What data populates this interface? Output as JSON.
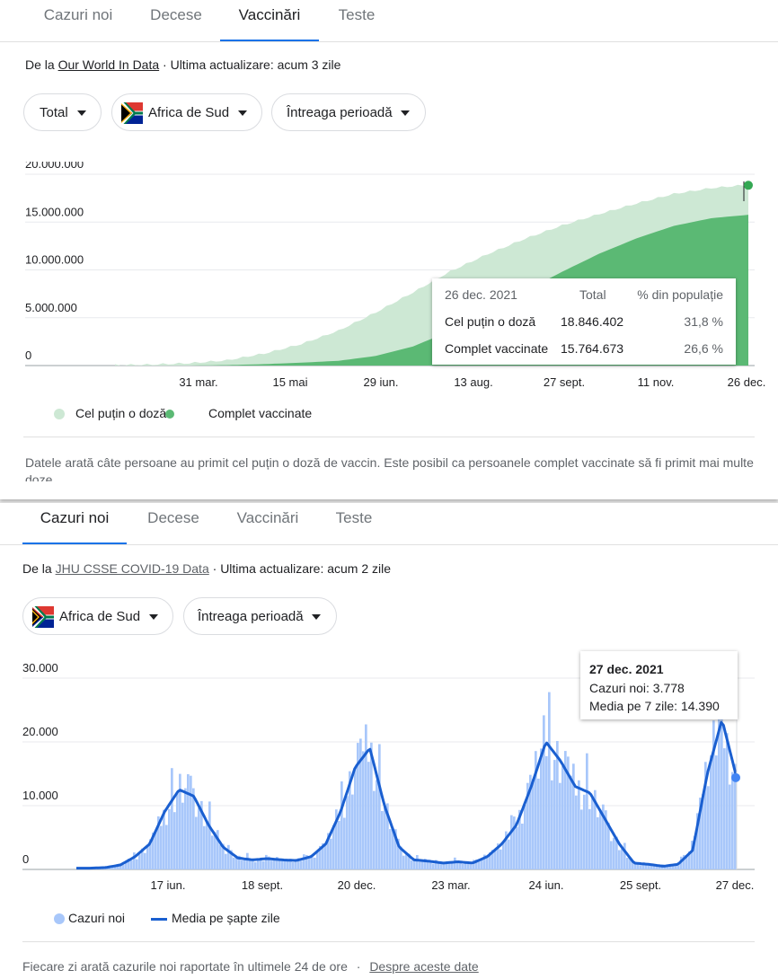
{
  "vacc": {
    "tabs": [
      "Cazuri noi",
      "Decese",
      "Vaccinări",
      "Teste"
    ],
    "active_tab": 2,
    "source_prefix": "De la",
    "source_link": "Our World In Data",
    "updated": "· Ultima actualizare: acum 3 zile",
    "filters": {
      "type": "Total",
      "country": "Africa de Sud",
      "period": "Întreaga perioadă"
    },
    "tooltip": {
      "date": "26 dec. 2021",
      "col_total": "Total",
      "col_pct": "% din populație",
      "rows": [
        {
          "label": "Cel puțin o doză",
          "total": "18.846.402",
          "pct": "31,8 %"
        },
        {
          "label": "Complet vaccinate",
          "total": "15.764.673",
          "pct": "26,6 %"
        }
      ]
    },
    "legend": [
      "Cel puțin o doză",
      "Complet vaccinate"
    ],
    "note": "Datele arată câte persoane au primit cel puțin o doză de vaccin. Este posibil ca persoanele complet vaccinate să fi primit mai multe doze"
  },
  "cases": {
    "tabs": [
      "Cazuri noi",
      "Decese",
      "Vaccinări",
      "Teste"
    ],
    "active_tab": 0,
    "source_prefix": "De la",
    "source_link": "JHU CSSE COVID-19 Data",
    "updated": "· Ultima actualizare: acum 2 zile",
    "filters": {
      "country": "Africa de Sud",
      "period": "Întreaga perioadă"
    },
    "tooltip": {
      "date": "27 dec. 2021",
      "line1": "Cazuri noi: 3.778",
      "line2": "Media pe 7 zile: 14.390"
    },
    "legend": [
      "Cazuri noi",
      "Media pe șapte zile"
    ],
    "footer_text": "Fiecare zi arată cazurile noi raportate în ultimele 24 de ore",
    "footer_sep": "·",
    "footer_link": "Despre aceste date"
  },
  "colors": {
    "accent": "#1a73e8",
    "green_light": "#cde8d4",
    "green_dark": "#5bb974",
    "blue_bar": "#a8c7fa",
    "blue_line": "#1a5fd0"
  },
  "icons": {
    "flag": "south-africa-flag-icon",
    "dropdown": "caret-down-icon"
  },
  "chart_data": [
    {
      "type": "area",
      "x_ticks": [
        "31 mar.",
        "15 mai",
        "29 iun.",
        "13 aug.",
        "27 sept.",
        "11 nov.",
        "26 dec."
      ],
      "y_ticks": [
        "0",
        "5.000.000",
        "10.000.000",
        "15.000.000",
        "20.000.000"
      ],
      "ylim": [
        0,
        21000000
      ],
      "series": [
        {
          "name": "Cel puțin o doză",
          "values": [
            0,
            60000,
            200000,
            500000,
            1200000,
            2200000,
            3600000,
            5500000,
            7600000,
            9800000,
            11600000,
            13200000,
            14600000,
            15800000,
            16900000,
            17900000,
            18500000,
            18846402
          ]
        },
        {
          "name": "Complet vaccinate",
          "values": [
            0,
            0,
            0,
            50000,
            150000,
            300000,
            500000,
            1000000,
            2000000,
            3600000,
            5600000,
            7800000,
            9800000,
            11700000,
            13300000,
            14600000,
            15400000,
            15764673
          ]
        }
      ]
    },
    {
      "type": "bar",
      "x_ticks": [
        "17 iun.",
        "18 sept.",
        "20 dec.",
        "23 mar.",
        "24 iun.",
        "25 sept.",
        "27 dec."
      ],
      "y_ticks": [
        "0",
        "10.000",
        "20.000",
        "30.000"
      ],
      "ylim": [
        0,
        30000
      ],
      "series": [
        {
          "name": "Cazuri noi"
        },
        {
          "name": "Media pe șapte zile",
          "values": [
            200,
            200,
            300,
            700,
            2000,
            4000,
            9000,
            12500,
            11500,
            7000,
            3500,
            1800,
            1500,
            1700,
            1500,
            1400,
            2000,
            4000,
            9000,
            16000,
            19000,
            10000,
            3500,
            1500,
            1300,
            1000,
            1200,
            1000,
            2000,
            4000,
            7000,
            13000,
            20000,
            17000,
            13000,
            12000,
            8000,
            4000,
            1000,
            800,
            500,
            800,
            3000,
            15000,
            23500,
            14390
          ]
        }
      ]
    }
  ]
}
